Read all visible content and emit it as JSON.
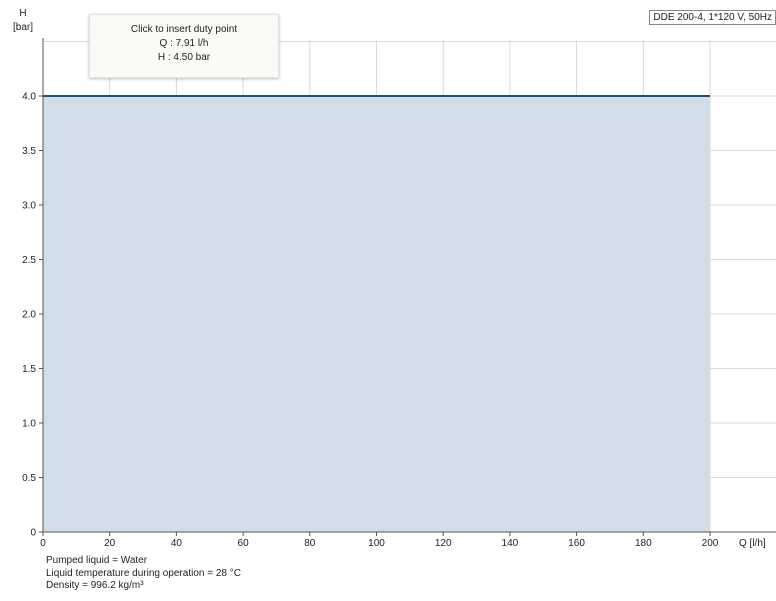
{
  "chart_data": {
    "type": "area",
    "ylabel_line1": "H",
    "ylabel_line2": "[bar]",
    "xlabel": "Q [l/h]",
    "xlim": [
      0,
      200
    ],
    "ylim": [
      0,
      4.5
    ],
    "grid": true,
    "x_ticks": [
      "0",
      "20",
      "40",
      "60",
      "80",
      "100",
      "120",
      "140",
      "160",
      "180",
      "200"
    ],
    "y_ticks": [
      "0",
      "0.5",
      "1.0",
      "1.5",
      "2.0",
      "2.5",
      "3.0",
      "3.5",
      "4.0"
    ],
    "series": [
      {
        "x": [
          0,
          200
        ],
        "y": [
          4.0,
          4.0
        ],
        "color": "#1f4e79",
        "fill": "#d1dde8"
      }
    ]
  },
  "legend_box": "DDE 200-4, 1*120 V, 50Hz",
  "tooltip": {
    "title": "Click to insert duty point",
    "q": "Q : 7.91 l/h",
    "h": "H : 4.50 bar"
  },
  "notes": [
    "Pumped liquid = Water",
    "Liquid temperature during operation = 28 °C",
    "Density = 996.2 kg/m³"
  ]
}
